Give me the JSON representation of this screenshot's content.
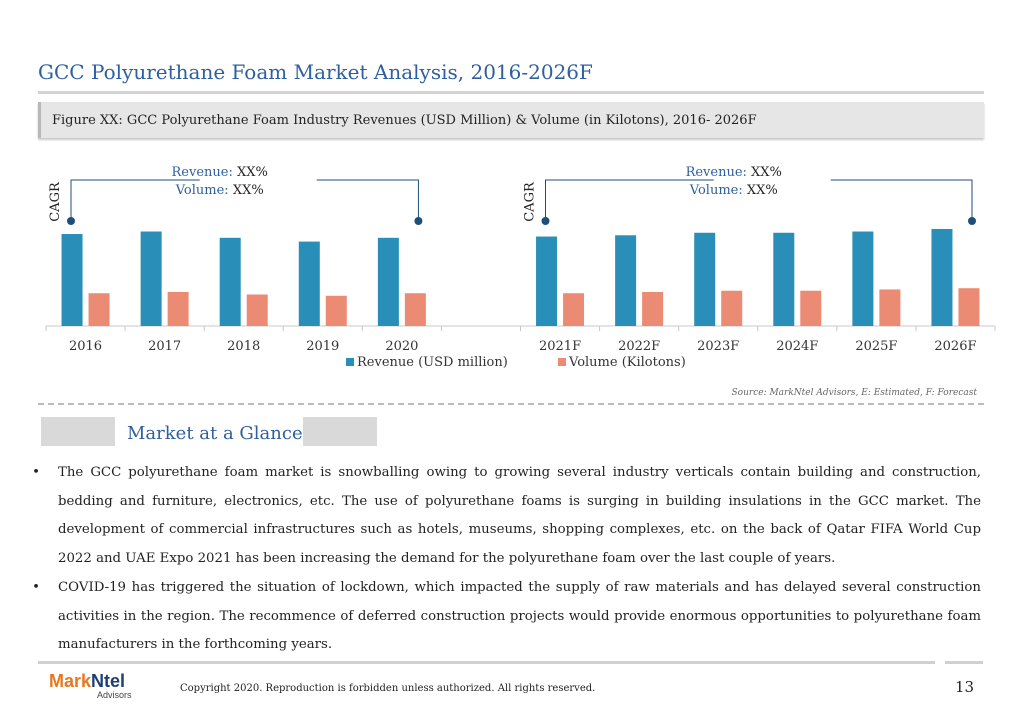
{
  "page": {
    "title": "GCC Polyurethane Foam Market Analysis, 2016-2026F",
    "figure_caption": "Figure XX: GCC Polyurethane Foam Industry Revenues (USD Million) & Volume (in Kilotons), 2016- 2026F",
    "source_note": "Source: MarkNtel Advisors, E: Estimated, F: Forecast",
    "section_title": "Market at a Glance",
    "bullets": [
      "The GCC polyurethane foam market is snowballing owing to growing several industry verticals contain building and construction, bedding and furniture, electronics, etc. The use of polyurethane foams is surging in building insulations in the GCC market. The development of commercial infrastructures such as hotels, museums, shopping complexes, etc. on the back of Qatar FIFA World Cup 2022 and UAE Expo 2021 has been increasing the demand for the polyurethane foam over the last couple of years.",
      "COVID-19 has triggered the situation of lockdown, which impacted the supply of raw materials and has delayed several construction activities in the region. The recommence of deferred construction projects would provide enormous opportunities to polyurethane foam manufacturers in the forthcoming years."
    ],
    "bullet_glyph": "•",
    "footer": {
      "logo_part1": "Mark",
      "logo_part2": "Ntel",
      "logo_sub": "Advisors",
      "copyright": "Copyright 2020. Reproduction is forbidden unless authorized. All rights reserved.",
      "page_number": "13"
    }
  },
  "chart_data": {
    "type": "bar",
    "categories": [
      "2016",
      "2017",
      "2018",
      "2019",
      "2020",
      "",
      "2021F",
      "2022F",
      "2023F",
      "2024F",
      "2025F",
      "2026F"
    ],
    "series": [
      {
        "name": "Revenue (USD million)",
        "color": "#2a8fb8",
        "values": [
          73,
          75,
          70,
          67,
          70,
          null,
          71,
          72,
          74,
          74,
          75,
          77
        ]
      },
      {
        "name": "Volume (Kilotons)",
        "color": "#ec8b73",
        "values": [
          26,
          27,
          25,
          24,
          26,
          null,
          26,
          27,
          28,
          28,
          29,
          30
        ]
      }
    ],
    "ylim": [
      0,
      100
    ],
    "grid": false,
    "legend_position": "bottom",
    "cagr_groups": [
      {
        "axis_label": "CAGR",
        "revenue_label": "Revenue:",
        "revenue_value": "XX%",
        "volume_label": "Volume:",
        "volume_value": "XX%",
        "from": "2016",
        "to": "2020"
      },
      {
        "axis_label": "CAGR",
        "revenue_label": "Revenue:",
        "revenue_value": "XX%",
        "volume_label": "Volume:",
        "volume_value": "XX%",
        "from": "2021F",
        "to": "2026F"
      }
    ],
    "colors": {
      "accent": "#2e5f9e",
      "connector": "#1f4e79",
      "axis": "#c8c8c8"
    }
  }
}
